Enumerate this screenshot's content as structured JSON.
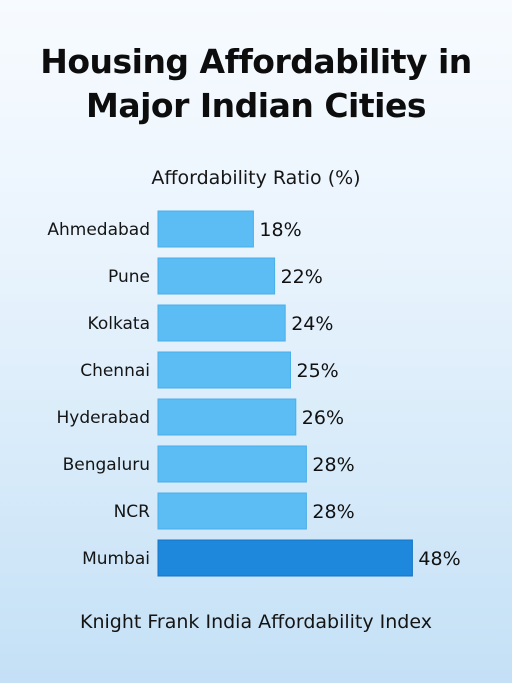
{
  "title_lines": [
    "Housing Affordability in",
    "Major Indian Cities"
  ],
  "footer": "Knight Frank India Affordability Index",
  "chart_data": {
    "type": "bar",
    "orientation": "horizontal",
    "title": "Housing Affordability in Major Indian Cities",
    "subtitle": "Affordability Ratio (%)",
    "categories": [
      "Ahmedabad",
      "Pune",
      "Kolkata",
      "Chennai",
      "Hyderabad",
      "Bengaluru",
      "NCR",
      "Mumbai"
    ],
    "values": [
      18,
      22,
      24,
      25,
      26,
      28,
      28,
      48
    ],
    "value_labels": [
      "18%",
      "22%",
      "24%",
      "25%",
      "26%",
      "28%",
      "28%",
      "48%"
    ],
    "highlight_category": "Mumbai",
    "colors": {
      "bar": "#5cbcf4",
      "bar_border": "#4aaee9",
      "highlight": "#1e88dc",
      "highlight_border": "#1574c4"
    },
    "grid": false,
    "legend": "none"
  }
}
